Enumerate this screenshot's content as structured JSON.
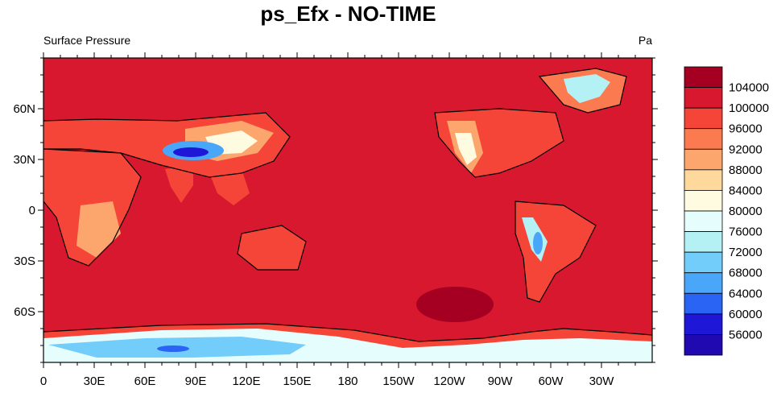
{
  "title": "ps_Efx - NO-TIME",
  "left_string": "Surface Pressure",
  "right_string": "Pa",
  "x_ticks": [
    "0",
    "30E",
    "60E",
    "90E",
    "120E",
    "150E",
    "180",
    "150W",
    "120W",
    "90W",
    "60W",
    "30W"
  ],
  "y_ticks": [
    "60N",
    "30N",
    "0",
    "30S",
    "60S"
  ],
  "colorbar": {
    "labels": [
      "104000",
      "100000",
      "96000",
      "92000",
      "88000",
      "84000",
      "80000",
      "76000",
      "72000",
      "68000",
      "64000",
      "60000",
      "56000"
    ],
    "colors": [
      "#a50021",
      "#d8182e",
      "#f54538",
      "#fb7a50",
      "#fca66e",
      "#fed99b",
      "#fffbe1",
      "#e6fdfd",
      "#b4f1f5",
      "#73cdfb",
      "#4aa6f9",
      "#2a64f5",
      "#1e17d7",
      "#2009b0"
    ]
  },
  "map_colors": {
    "ocean": "#d8182e",
    "high": "#a50021",
    "land_lo": "#f54538",
    "coast": "#000000"
  }
}
